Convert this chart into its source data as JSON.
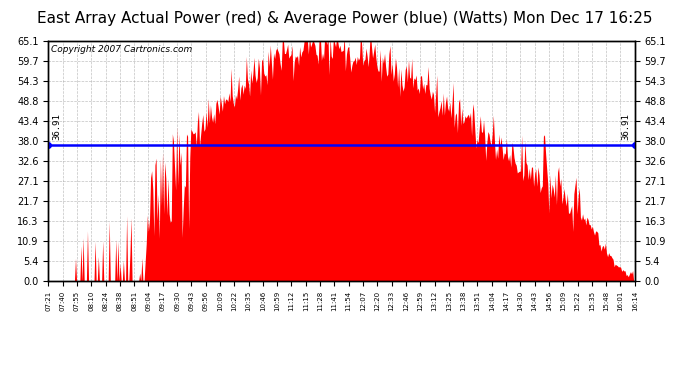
{
  "title": "East Array Actual Power (red) & Average Power (blue) (Watts) Mon Dec 17 16:25",
  "copyright": "Copyright 2007 Cartronics.com",
  "average_value": 36.91,
  "avg_label": "36.91",
  "y_ticks": [
    0.0,
    5.4,
    10.9,
    16.3,
    21.7,
    27.1,
    32.6,
    38.0,
    43.4,
    48.8,
    54.3,
    59.7,
    65.1
  ],
  "ylim": [
    0.0,
    65.1
  ],
  "bar_color": "#FF0000",
  "avg_line_color": "#0000FF",
  "background_color": "#FFFFFF",
  "plot_bg_color": "#FFFFFF",
  "grid_color": "#999999",
  "title_fontsize": 11,
  "copyright_fontsize": 6.5,
  "x_tick_labels": [
    "07:21",
    "07:40",
    "07:55",
    "08:10",
    "08:24",
    "08:38",
    "08:51",
    "09:04",
    "09:17",
    "09:30",
    "09:43",
    "09:56",
    "10:09",
    "10:22",
    "10:35",
    "10:46",
    "10:59",
    "11:12",
    "11:15",
    "11:28",
    "11:41",
    "11:54",
    "12:07",
    "12:20",
    "12:33",
    "12:46",
    "12:59",
    "13:12",
    "13:25",
    "13:38",
    "13:51",
    "14:04",
    "14:17",
    "14:30",
    "14:43",
    "14:56",
    "15:09",
    "15:22",
    "15:35",
    "15:48",
    "16:01",
    "16:14"
  ]
}
